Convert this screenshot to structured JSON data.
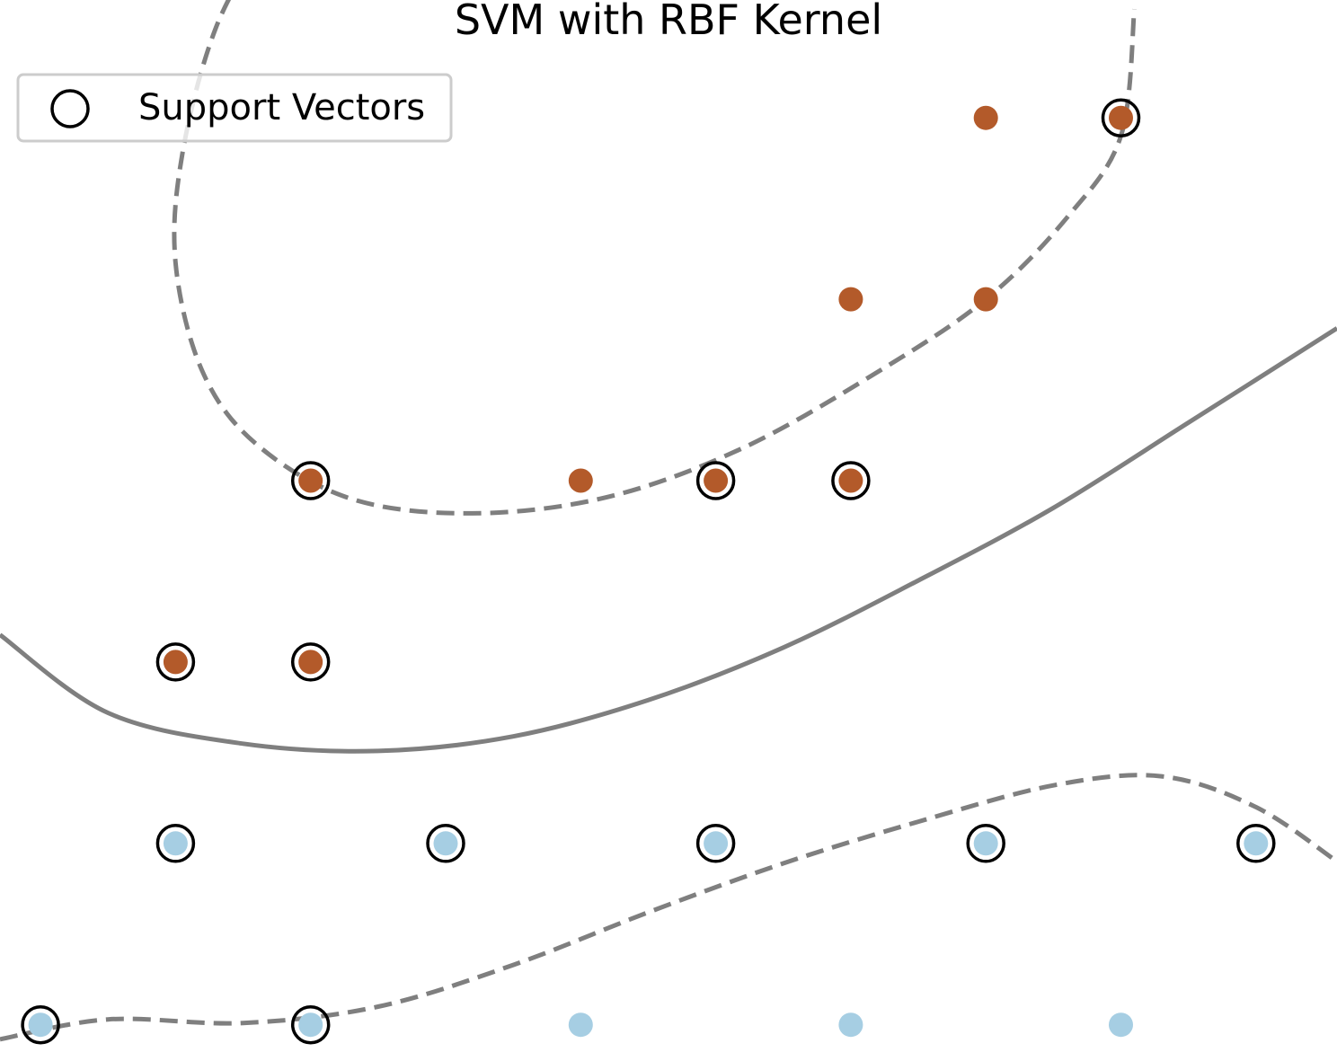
{
  "chart_data": {
    "type": "scatter",
    "title": "SVM with RBF Kernel",
    "legend": {
      "placement": "top-left",
      "entries": [
        "Support Vectors"
      ]
    },
    "grid": false,
    "axes_visible": false,
    "xlim": [
      -0.3,
      9.6
    ],
    "ylim": [
      -0.15,
      5.65
    ],
    "colors": {
      "class_1": "#b35a2a",
      "class_0": "#a6cee3",
      "support_vector_edge": "#000000",
      "boundary": "#7f7f7f"
    },
    "series": [
      {
        "name": "",
        "class": 1,
        "points": [
          [
            7.0,
            5.0
          ],
          [
            8.0,
            5.0
          ],
          [
            6.0,
            4.0
          ],
          [
            7.0,
            4.0
          ],
          [
            2.0,
            3.0
          ],
          [
            4.0,
            3.0
          ],
          [
            5.0,
            3.0
          ],
          [
            6.0,
            3.0
          ],
          [
            1.0,
            2.0
          ],
          [
            2.0,
            2.0
          ]
        ]
      },
      {
        "name": "",
        "class": 0,
        "points": [
          [
            1.0,
            1.0
          ],
          [
            3.0,
            1.0
          ],
          [
            5.0,
            1.0
          ],
          [
            7.0,
            1.0
          ],
          [
            9.0,
            1.0
          ],
          [
            0.0,
            0.0
          ],
          [
            2.0,
            0.0
          ],
          [
            4.0,
            0.0
          ],
          [
            6.0,
            0.0
          ],
          [
            8.0,
            0.0
          ]
        ]
      }
    ],
    "support_vectors": [
      [
        8.0,
        5.0
      ],
      [
        2.0,
        3.0
      ],
      [
        5.0,
        3.0
      ],
      [
        6.0,
        3.0
      ],
      [
        1.0,
        2.0
      ],
      [
        2.0,
        2.0
      ],
      [
        1.0,
        1.0
      ],
      [
        3.0,
        1.0
      ],
      [
        5.0,
        1.0
      ],
      [
        7.0,
        1.0
      ],
      [
        9.0,
        1.0
      ],
      [
        0.0,
        0.0
      ],
      [
        2.0,
        0.0
      ]
    ],
    "decision_function": {
      "levels": [
        -1,
        0,
        1
      ],
      "linestyles": [
        "dashed",
        "solid",
        "dashed"
      ],
      "contours": [
        {
          "level": 0,
          "points": [
            [
              -0.3,
              2.15
            ],
            [
              0.5,
              1.72
            ],
            [
              1.5,
              1.55
            ],
            [
              2.5,
              1.51
            ],
            [
              3.5,
              1.59
            ],
            [
              4.5,
              1.79
            ],
            [
              5.5,
              2.08
            ],
            [
              6.5,
              2.45
            ],
            [
              7.5,
              2.85
            ],
            [
              8.5,
              3.32
            ],
            [
              9.6,
              3.84
            ]
          ]
        },
        {
          "level": 1,
          "points": [
            [
              1.7,
              6.05
            ],
            [
              1.3,
              5.5
            ],
            [
              1.05,
              4.8
            ],
            [
              1.0,
              4.2
            ],
            [
              1.2,
              3.6
            ],
            [
              1.6,
              3.2
            ],
            [
              2.3,
              2.9
            ],
            [
              3.2,
              2.82
            ],
            [
              4.2,
              2.91
            ],
            [
              5.2,
              3.18
            ],
            [
              6.2,
              3.6
            ],
            [
              7.0,
              4.0
            ],
            [
              7.6,
              4.45
            ],
            [
              8.0,
              4.9
            ],
            [
              8.1,
              5.6
            ]
          ]
        },
        {
          "level": -1,
          "points": [
            [
              -0.3,
              -0.08
            ],
            [
              0.5,
              0.03
            ],
            [
              1.5,
              0.01
            ],
            [
              2.5,
              0.1
            ],
            [
              3.5,
              0.33
            ],
            [
              4.5,
              0.62
            ],
            [
              5.5,
              0.89
            ],
            [
              6.5,
              1.12
            ],
            [
              7.5,
              1.32
            ],
            [
              8.3,
              1.37
            ],
            [
              9.0,
              1.2
            ],
            [
              9.6,
              0.9
            ]
          ]
        }
      ]
    }
  }
}
